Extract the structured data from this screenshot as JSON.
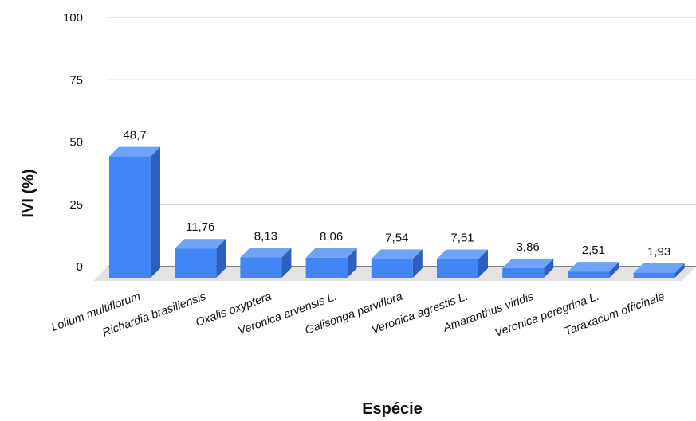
{
  "chart_data": {
    "type": "bar",
    "title": "",
    "xlabel": "Espécie",
    "ylabel": "IVI (%)",
    "ylim": [
      0,
      100
    ],
    "yticks": [
      "0",
      "25",
      "50",
      "75",
      "100"
    ],
    "categories": [
      "Lolium multiflorum",
      "Richardia brasiliensis",
      "Oxalis oxyptera",
      "Veronica arvensis L.",
      "Galisonga parviflora",
      "Veronica agrestis L.",
      "Amaranthus viridis",
      "Veronica peregrina L.",
      "Taraxacum officinale"
    ],
    "values": [
      48.7,
      11.76,
      8.13,
      8.06,
      7.54,
      7.51,
      3.86,
      2.51,
      1.93
    ],
    "data_labels": [
      "48,7",
      "11,76",
      "8,13",
      "8,06",
      "7,54",
      "7,51",
      "3,86",
      "2,51",
      "1,93"
    ],
    "grid": true,
    "legend": "none",
    "style": "3d",
    "colors": {
      "bar_front": "#4285f4",
      "bar_top": "#6fa3f7",
      "bar_side": "#2d5fbf",
      "floor": "#e3e3e3",
      "grid": "#cccccc",
      "baseline": "#333333"
    }
  }
}
